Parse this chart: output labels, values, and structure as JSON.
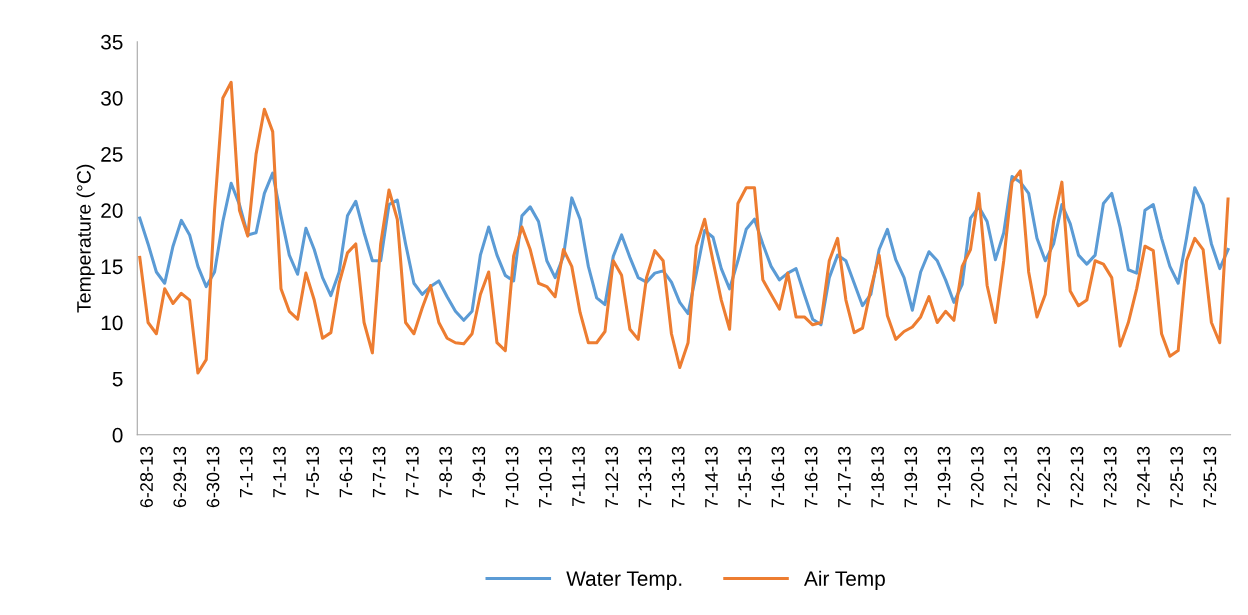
{
  "chart_data": {
    "type": "line",
    "ylabel": "Temperature (°C)",
    "categories": [
      null,
      "6-28-13",
      null,
      null,
      null,
      "6-29-13",
      null,
      null,
      null,
      "6-30-13",
      null,
      null,
      null,
      "7-1-13",
      null,
      null,
      null,
      "7-1-13",
      null,
      null,
      null,
      "7-5-13",
      null,
      null,
      null,
      "7-6-13",
      null,
      null,
      null,
      "7-7-13",
      null,
      null,
      null,
      "7-7-13",
      null,
      null,
      null,
      "7-8-13",
      null,
      null,
      null,
      "7-9-13",
      null,
      null,
      null,
      "7-10-13",
      null,
      null,
      null,
      "7-10-13",
      null,
      null,
      null,
      "7-11-13",
      null,
      null,
      null,
      "7-12-13",
      null,
      null,
      null,
      "7-13-13",
      null,
      null,
      null,
      "7-13-13",
      null,
      null,
      null,
      "7-14-13",
      null,
      null,
      null,
      "7-15-13",
      null,
      null,
      null,
      "7-16-13",
      null,
      null,
      null,
      "7-16-13",
      null,
      null,
      null,
      "7-17-13",
      null,
      null,
      null,
      "7-18-13",
      null,
      null,
      null,
      "7-19-13",
      null,
      null,
      null,
      "7-19-13",
      null,
      null,
      null,
      "7-20-13",
      null,
      null,
      null,
      "7-21-13",
      null,
      null,
      null,
      "7-22-13",
      null,
      null,
      null,
      "7-22-13",
      null,
      null,
      null,
      "7-23-13",
      null,
      null,
      null,
      "7-24-13",
      null,
      null,
      null,
      "7-25-13",
      null,
      null,
      null,
      "7-25-13",
      null,
      null
    ],
    "series": [
      {
        "name": "Water Temp.",
        "color": "#5b9bd5",
        "values": [
          19.3,
          17,
          14.5,
          13.5,
          16.8,
          19.1,
          17.8,
          15,
          13.2,
          14.5,
          19,
          22.4,
          20.5,
          17.8,
          18,
          21.5,
          23.3,
          19.5,
          16,
          14.3,
          18.4,
          16.5,
          14,
          12.4,
          14.5,
          19.5,
          20.8,
          18,
          15.5,
          15.5,
          20.5,
          20.9,
          17,
          13.5,
          12.5,
          13.2,
          13.7,
          12.3,
          11,
          10.2,
          11,
          16,
          18.5,
          16,
          14.2,
          13.7,
          19.5,
          20.3,
          19,
          15.5,
          14,
          15.9,
          21.1,
          19.2,
          15,
          12.2,
          11.6,
          15.9,
          17.8,
          15.8,
          14,
          13.6,
          14.4,
          14.6,
          13.6,
          11.8,
          10.8,
          14.4,
          18.2,
          17.6,
          14.8,
          13,
          15.5,
          18.3,
          19.2,
          17,
          15,
          13.8,
          14.4,
          14.8,
          12.5,
          10.3,
          9.8,
          14,
          16,
          15.5,
          13.5,
          11.5,
          12.5,
          16.5,
          18.3,
          15.6,
          14,
          11.1,
          14.5,
          16.3,
          15.5,
          13.8,
          11.8,
          13.4,
          19.3,
          20.3,
          19,
          15.6,
          18,
          23,
          22.5,
          21.5,
          17.5,
          15.5,
          17,
          20.5,
          18.8,
          16,
          15.2,
          16,
          20.6,
          21.5,
          18.5,
          14.7,
          14.4,
          20,
          20.5,
          17.5,
          15,
          13.5,
          17.5,
          22,
          20.5,
          17,
          14.8,
          16.5
        ]
      },
      {
        "name": "Air Temp",
        "color": "#ed7d31",
        "values": [
          15.8,
          10,
          9,
          13,
          11.7,
          12.6,
          12,
          5.5,
          6.7,
          20,
          30,
          31.4,
          20,
          17.7,
          25,
          29,
          27,
          13,
          11,
          10.3,
          14.4,
          12,
          8.6,
          9.1,
          13.5,
          16.2,
          17,
          10,
          7.3,
          17,
          21.8,
          19.2,
          10,
          9,
          11.3,
          13.3,
          10,
          8.6,
          8.2,
          8.1,
          9,
          12.5,
          14.5,
          8.2,
          7.5,
          15.9,
          18.5,
          16.5,
          13.5,
          13.2,
          12.3,
          16.5,
          15,
          10.9,
          8.2,
          8.2,
          9.2,
          15.5,
          14.2,
          9.4,
          8.5,
          14,
          16.4,
          15.5,
          9,
          6,
          8.2,
          16.8,
          19.2,
          15.5,
          12,
          9.4,
          20.6,
          22,
          22,
          13.8,
          12.5,
          11.2,
          14.4,
          10.5,
          10.5,
          9.8,
          10,
          15.5,
          17.5,
          12,
          9.1,
          9.5,
          13,
          16,
          10.6,
          8.5,
          9.2,
          9.6,
          10.5,
          12.3,
          10,
          11,
          10.2,
          15,
          16.5,
          21.5,
          13.3,
          10,
          15.5,
          22.5,
          23.5,
          14.5,
          10.5,
          12.5,
          19,
          22.5,
          12.8,
          11.5,
          12,
          15.5,
          15.2,
          14,
          7.9,
          10,
          13,
          16.8,
          16.4,
          9,
          7,
          7.5,
          15.5,
          17.5,
          16.5,
          10,
          8.2,
          21
        ]
      }
    ],
    "ylim": [
      0,
      35
    ],
    "yticks": [
      0,
      5,
      10,
      15,
      20,
      25,
      30,
      35
    ],
    "grid": false,
    "legend": "bottom",
    "marker": "none",
    "line_style": "solid"
  }
}
